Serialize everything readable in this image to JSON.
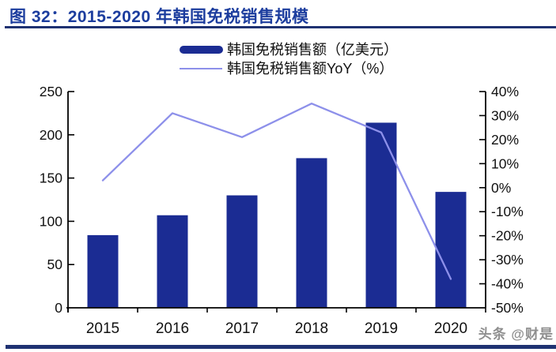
{
  "figure": {
    "title": "图 32：2015-2020 年韩国免税销售规模",
    "watermark": "头条 @财是"
  },
  "legend": {
    "bar_label": "韩国免税销售额（亿美元）",
    "line_label": "韩国免税销售额YoY（%）"
  },
  "colors": {
    "bar": "#1B2C93",
    "line": "#8D90EA",
    "title": "#1C3D9E",
    "rule": "#1F3272",
    "axis": "#000000",
    "tick_label": "#111111",
    "watermark": "#8F8F8F",
    "bottom_strip": "#1F3272"
  },
  "chart_data": {
    "type": "bar",
    "subtype": "bar+line combo, dual axis",
    "categories": [
      "2015",
      "2016",
      "2017",
      "2018",
      "2019",
      "2020"
    ],
    "series": [
      {
        "name": "韩国免税销售额（亿美元）",
        "type": "bar",
        "axis": "left",
        "values": [
          84,
          107,
          130,
          173,
          214,
          134
        ]
      },
      {
        "name": "韩国免税销售额YoY（%）",
        "type": "line",
        "axis": "right",
        "values": [
          3,
          31,
          21,
          35,
          23,
          -38
        ]
      }
    ],
    "title": "2015-2020 年韩国免税销售规模",
    "xlabel": "",
    "ylabel_left": "亿美元",
    "ylabel_right": "%",
    "left_axis": {
      "min": 0,
      "max": 250,
      "tick_step": 50,
      "tick_labels": [
        "0",
        "50",
        "100",
        "150",
        "200",
        "250"
      ]
    },
    "right_axis": {
      "min": -50,
      "max": 40,
      "tick_step": 10,
      "tick_labels": [
        "40%",
        "30%",
        "20%",
        "10%",
        "0%",
        "-10%",
        "-20%",
        "-30%",
        "-40%",
        "-50%"
      ]
    },
    "grid": false,
    "legend_position": "top-center"
  }
}
